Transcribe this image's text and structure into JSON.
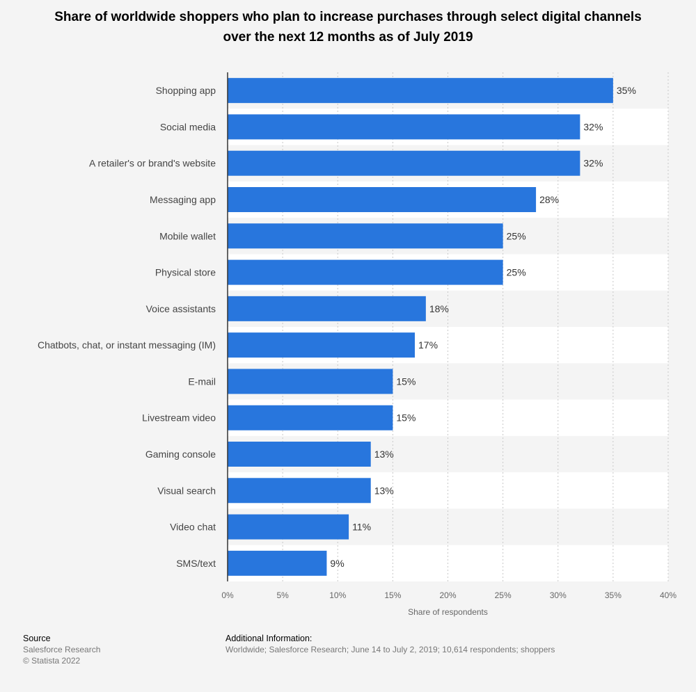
{
  "chart_data": {
    "type": "bar",
    "orientation": "horizontal",
    "title": "Share of worldwide shoppers who plan to increase purchases through select digital channels over the next 12 months as of July 2019",
    "xlabel": "Share of respondents",
    "ylabel": "",
    "categories": [
      "Shopping app",
      "Social media",
      "A retailer's or brand's website",
      "Messaging app",
      "Mobile wallet",
      "Physical store",
      "Voice assistants",
      "Chatbots, chat, or instant messaging (IM)",
      "E-mail",
      "Livestream video",
      "Gaming console",
      "Visual search",
      "Video chat",
      "SMS/text"
    ],
    "values": [
      35,
      32,
      32,
      28,
      25,
      25,
      18,
      17,
      15,
      15,
      13,
      13,
      11,
      9
    ],
    "value_labels": [
      "35%",
      "32%",
      "32%",
      "28%",
      "25%",
      "25%",
      "18%",
      "17%",
      "15%",
      "15%",
      "13%",
      "13%",
      "11%",
      "9%"
    ],
    "xlim": [
      0,
      40
    ],
    "ticks": [
      0,
      5,
      10,
      15,
      20,
      25,
      30,
      35,
      40
    ],
    "tick_labels": [
      "0%",
      "5%",
      "10%",
      "15%",
      "20%",
      "25%",
      "30%",
      "35%",
      "40%"
    ],
    "grid": true,
    "colors": {
      "bar": "#2876dd",
      "background": "#f4f4f4",
      "band": "#ffffff"
    }
  },
  "footer": {
    "source_heading": "Source",
    "source_name": "Salesforce Research",
    "copyright": "© Statista 2022",
    "info_heading": "Additional Information:",
    "info_text": "Worldwide; Salesforce Research; June 14 to July 2, 2019; 10,614 respondents; shoppers"
  }
}
